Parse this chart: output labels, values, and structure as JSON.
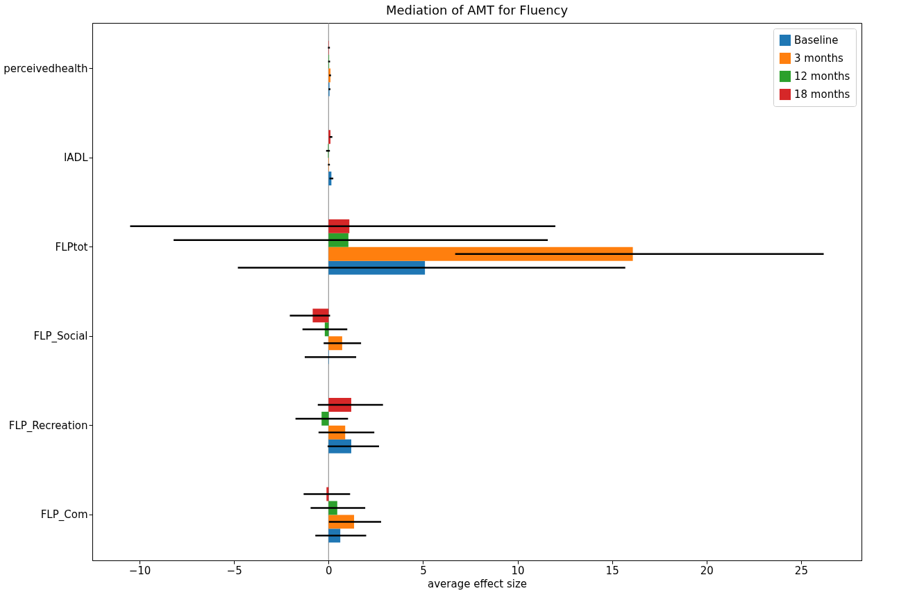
{
  "chart_data": {
    "type": "bar",
    "orientation": "horizontal",
    "title": "Mediation of AMT for Fluency",
    "xlabel": "average effect size",
    "categories": [
      "perceivedhealth",
      "IADL",
      "FLPtot",
      "FLP_Social",
      "FLP_Recreation",
      "FLP_Com"
    ],
    "xlim": [
      -12.5,
      28.2
    ],
    "xticks": [
      -10,
      -5,
      0,
      5,
      10,
      15,
      20,
      25
    ],
    "grid": false,
    "legend": "top right",
    "ref_lines": [
      {
        "axis": "x",
        "value": 0,
        "color": "#808080"
      }
    ],
    "series": [
      {
        "name": "Baseline",
        "color": "#1f77b4",
        "values": [
          0.05,
          0.15,
          5.1,
          0.02,
          1.2,
          0.62
        ],
        "errors": [
          [
            0,
            0.1
          ],
          [
            0.05,
            0.25
          ],
          [
            -4.8,
            15.7
          ],
          [
            -1.26,
            1.46
          ],
          [
            -0.05,
            2.67
          ],
          [
            -0.7,
            1.99
          ]
        ]
      },
      {
        "name": "3 months",
        "color": "#ff7f0e",
        "values": [
          0.1,
          0.02,
          16.1,
          0.72,
          0.88,
          1.35
        ],
        "errors": [
          [
            0.03,
            0.13
          ],
          [
            -0.03,
            0.07
          ],
          [
            6.7,
            26.2
          ],
          [
            -0.26,
            1.72
          ],
          [
            -0.53,
            2.42
          ],
          [
            0.02,
            2.78
          ]
        ]
      },
      {
        "name": "12 months",
        "color": "#2ca02c",
        "values": [
          0.03,
          -0.03,
          1.05,
          -0.2,
          -0.37,
          0.46
        ],
        "errors": [
          [
            -0.02,
            0.08
          ],
          [
            -0.13,
            0.07
          ],
          [
            -8.2,
            11.6
          ],
          [
            -1.38,
            0.99
          ],
          [
            -1.75,
            1.03
          ],
          [
            -0.95,
            1.94
          ]
        ]
      },
      {
        "name": "18 months",
        "color": "#d62728",
        "values": [
          0.02,
          0.1,
          1.1,
          -0.84,
          1.2,
          -0.11
        ],
        "errors": [
          [
            -0.03,
            0.07
          ],
          [
            0.05,
            0.2
          ],
          [
            -10.5,
            12.0
          ],
          [
            -2.05,
            0.08
          ],
          [
            -0.57,
            2.88
          ],
          [
            -1.32,
            1.14
          ]
        ]
      }
    ]
  }
}
